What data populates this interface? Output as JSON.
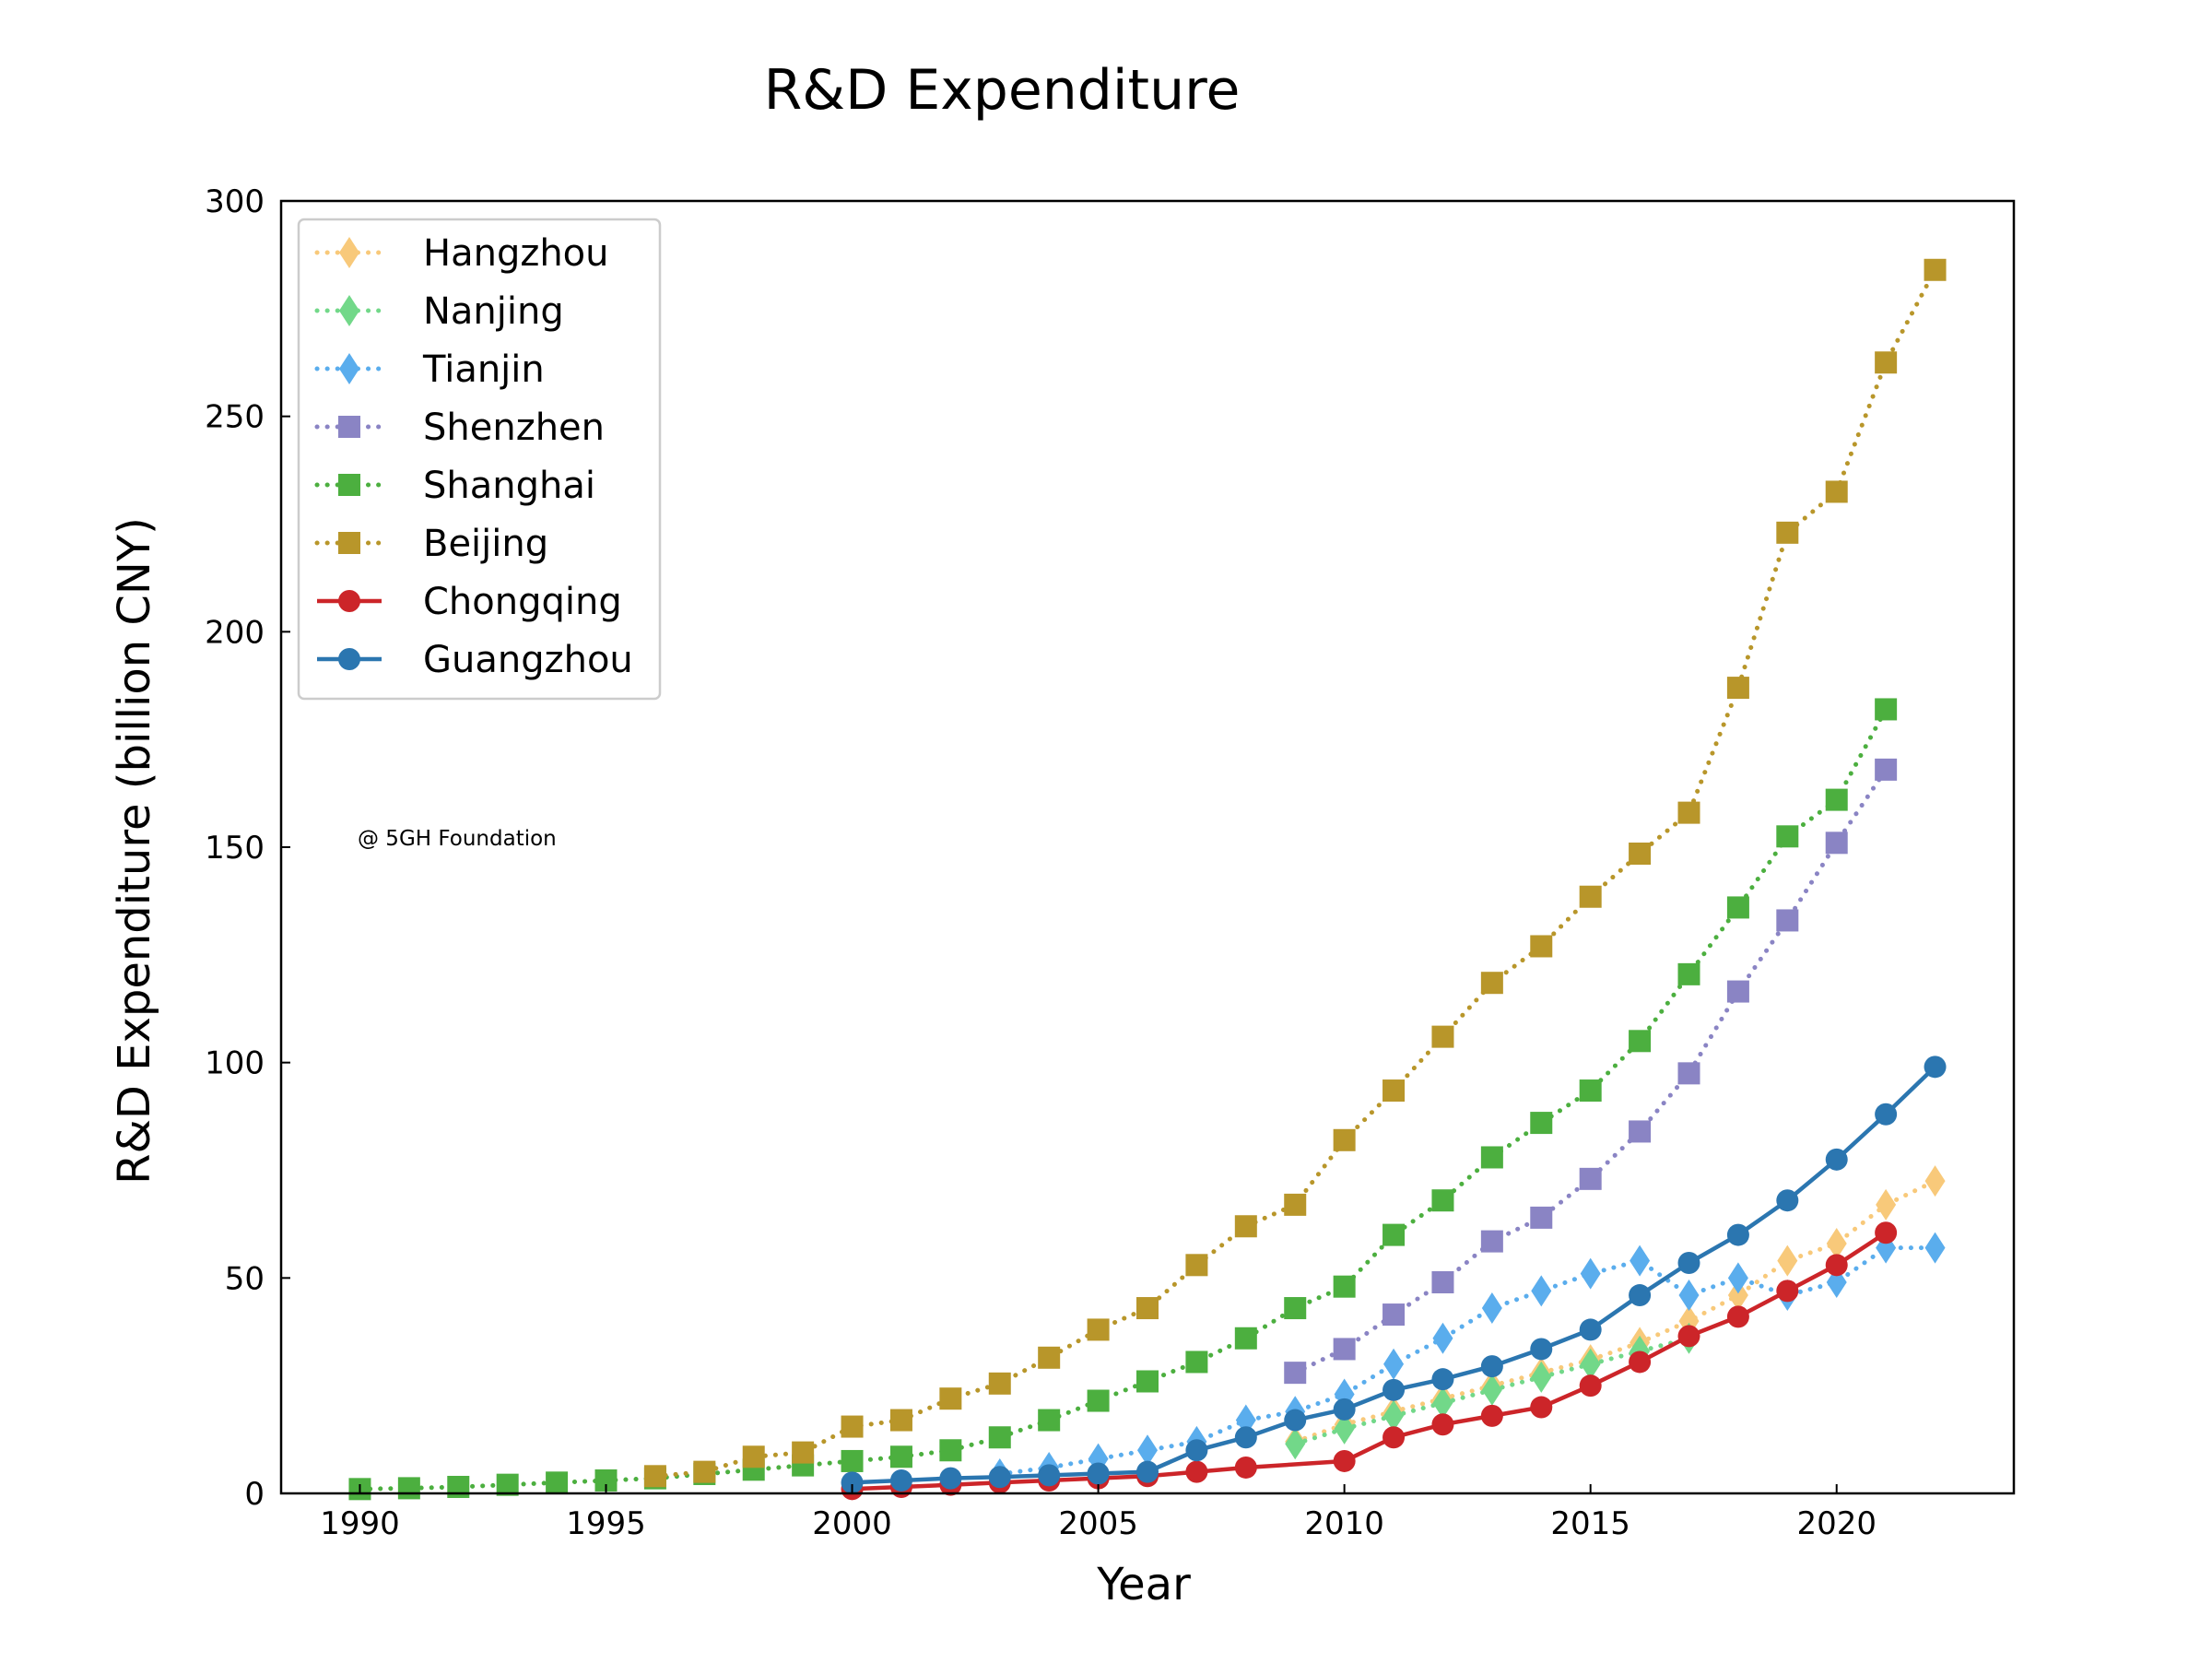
{
  "chart_data": {
    "type": "line",
    "title": "R&D Expenditure",
    "xlabel": "Year",
    "ylabel": "R&D Expenditure (billion CNY)",
    "xlim": [
      1988.4,
      2023.6
    ],
    "ylim": [
      0,
      300
    ],
    "xticks": [
      1990,
      1995,
      2000,
      2005,
      2010,
      2015,
      2020
    ],
    "yticks": [
      0,
      50,
      100,
      150,
      200,
      250,
      300
    ],
    "grid": false,
    "legend_position": "top-left",
    "annotation": "@ 5GH Foundation",
    "series": [
      {
        "name": "Hangzhou",
        "color": "#f8c97a",
        "marker": "diamond",
        "linestyle": "dotted",
        "points": [
          [
            2009,
            12
          ],
          [
            2010,
            16
          ],
          [
            2011,
            19
          ],
          [
            2012,
            22
          ],
          [
            2013,
            25
          ],
          [
            2014,
            28
          ],
          [
            2015,
            31
          ],
          [
            2016,
            35
          ],
          [
            2017,
            40
          ],
          [
            2018,
            46
          ],
          [
            2019,
            54
          ],
          [
            2020,
            58
          ],
          [
            2021,
            67
          ],
          [
            2022,
            72.5
          ]
        ]
      },
      {
        "name": "Nanjing",
        "color": "#72d889",
        "marker": "diamond",
        "linestyle": "dotted",
        "points": [
          [
            2009,
            11.5
          ],
          [
            2010,
            15
          ],
          [
            2011,
            18
          ],
          [
            2012,
            21
          ],
          [
            2013,
            24
          ],
          [
            2014,
            27
          ],
          [
            2015,
            30
          ],
          [
            2016,
            33
          ],
          [
            2017,
            36
          ]
        ]
      },
      {
        "name": "Tianjin",
        "color": "#5aaded",
        "marker": "diamond",
        "linestyle": "dotted",
        "points": [
          [
            2003,
            4.5
          ],
          [
            2004,
            6
          ],
          [
            2005,
            8
          ],
          [
            2006,
            10
          ],
          [
            2007,
            12
          ],
          [
            2008,
            17
          ],
          [
            2009,
            19
          ],
          [
            2010,
            23
          ],
          [
            2011,
            30
          ],
          [
            2012,
            36
          ],
          [
            2013,
            43
          ],
          [
            2014,
            47
          ],
          [
            2015,
            51
          ],
          [
            2016,
            54
          ],
          [
            2017,
            46
          ],
          [
            2018,
            50
          ],
          [
            2019,
            46
          ],
          [
            2020,
            49
          ],
          [
            2021,
            57
          ],
          [
            2022,
            57
          ]
        ]
      },
      {
        "name": "Shenzhen",
        "color": "#8a84c4",
        "marker": "square",
        "linestyle": "dotted",
        "points": [
          [
            2009,
            28
          ],
          [
            2010,
            33.5
          ],
          [
            2011,
            41.5
          ],
          [
            2012,
            49
          ],
          [
            2013,
            58.5
          ],
          [
            2014,
            64
          ],
          [
            2015,
            73
          ],
          [
            2016,
            84
          ],
          [
            2017,
            97.5
          ],
          [
            2018,
            116.5
          ],
          [
            2019,
            133
          ],
          [
            2020,
            151
          ],
          [
            2021,
            168
          ]
        ]
      },
      {
        "name": "Shanghai",
        "color": "#4caf3f",
        "marker": "square",
        "linestyle": "dotted",
        "points": [
          [
            1990,
            1
          ],
          [
            1991,
            1.2
          ],
          [
            1992,
            1.5
          ],
          [
            1993,
            2
          ],
          [
            1994,
            2.5
          ],
          [
            1995,
            3
          ],
          [
            1996,
            3.5
          ],
          [
            1997,
            4.5
          ],
          [
            1998,
            5.5
          ],
          [
            1999,
            6.5
          ],
          [
            2000,
            7.5
          ],
          [
            2001,
            8.5
          ],
          [
            2002,
            10
          ],
          [
            2003,
            13
          ],
          [
            2004,
            17
          ],
          [
            2005,
            21.5
          ],
          [
            2006,
            26
          ],
          [
            2007,
            30.5
          ],
          [
            2008,
            36
          ],
          [
            2009,
            43
          ],
          [
            2010,
            48
          ],
          [
            2011,
            60
          ],
          [
            2012,
            68
          ],
          [
            2013,
            78
          ],
          [
            2014,
            86
          ],
          [
            2015,
            93.5
          ],
          [
            2016,
            105
          ],
          [
            2017,
            120.5
          ],
          [
            2018,
            136
          ],
          [
            2019,
            152.5
          ],
          [
            2020,
            161
          ],
          [
            2021,
            182
          ]
        ]
      },
      {
        "name": "Beijing",
        "color": "#b8962a",
        "marker": "square",
        "linestyle": "dotted",
        "points": [
          [
            1996,
            4
          ],
          [
            1997,
            5
          ],
          [
            1998,
            8.5
          ],
          [
            1999,
            9.5
          ],
          [
            2000,
            15.5
          ],
          [
            2001,
            17
          ],
          [
            2002,
            22
          ],
          [
            2003,
            25.5
          ],
          [
            2004,
            31.5
          ],
          [
            2005,
            38
          ],
          [
            2006,
            43
          ],
          [
            2007,
            53
          ],
          [
            2008,
            62
          ],
          [
            2009,
            67
          ],
          [
            2010,
            82
          ],
          [
            2011,
            93.5
          ],
          [
            2012,
            106
          ],
          [
            2013,
            118.5
          ],
          [
            2014,
            127
          ],
          [
            2015,
            138.5
          ],
          [
            2016,
            148.5
          ],
          [
            2017,
            158
          ],
          [
            2018,
            187
          ],
          [
            2019,
            223
          ],
          [
            2020,
            232.5
          ],
          [
            2021,
            262.5
          ],
          [
            2022,
            284
          ]
        ]
      },
      {
        "name": "Chongqing",
        "color": "#cc2529",
        "marker": "circle",
        "linestyle": "solid",
        "points": [
          [
            2000,
            1
          ],
          [
            2001,
            1.5
          ],
          [
            2002,
            2
          ],
          [
            2003,
            2.5
          ],
          [
            2004,
            3
          ],
          [
            2005,
            3.5
          ],
          [
            2006,
            4
          ],
          [
            2007,
            5
          ],
          [
            2008,
            6
          ],
          [
            2010,
            7.5
          ],
          [
            2011,
            13
          ],
          [
            2012,
            16
          ],
          [
            2013,
            18
          ],
          [
            2014,
            20
          ],
          [
            2015,
            25
          ],
          [
            2016,
            30.5
          ],
          [
            2017,
            36.5
          ],
          [
            2018,
            41
          ],
          [
            2019,
            47
          ],
          [
            2020,
            53
          ],
          [
            2021,
            60.5
          ]
        ]
      },
      {
        "name": "Guangzhou",
        "color": "#2b76b0",
        "marker": "circle",
        "linestyle": "solid",
        "points": [
          [
            2000,
            2.5
          ],
          [
            2001,
            3
          ],
          [
            2002,
            3.5
          ],
          [
            2003,
            3.8
          ],
          [
            2004,
            4.2
          ],
          [
            2005,
            4.6
          ],
          [
            2006,
            5
          ],
          [
            2007,
            10
          ],
          [
            2008,
            13
          ],
          [
            2009,
            17
          ],
          [
            2010,
            19.5
          ],
          [
            2011,
            24
          ],
          [
            2012,
            26.5
          ],
          [
            2013,
            29.5
          ],
          [
            2014,
            33.5
          ],
          [
            2015,
            38
          ],
          [
            2016,
            46
          ],
          [
            2017,
            53.5
          ],
          [
            2018,
            60
          ],
          [
            2019,
            68
          ],
          [
            2020,
            77.5
          ],
          [
            2021,
            88
          ],
          [
            2022,
            99
          ]
        ]
      }
    ]
  }
}
